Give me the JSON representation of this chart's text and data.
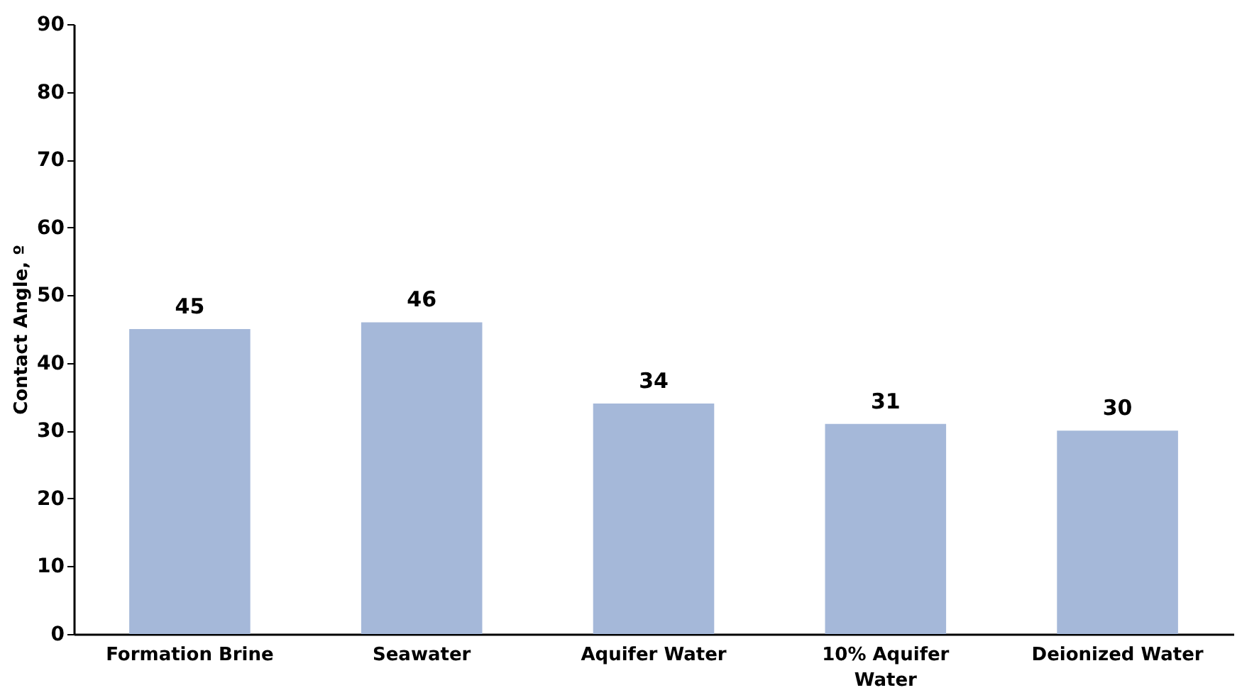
{
  "chart_data": {
    "type": "bar",
    "ylabel": "Contact Angle, º",
    "categories": [
      "Formation Brine",
      "Seawater",
      "Aquifer Water",
      "10% Aquifer Water",
      "Deionized Water"
    ],
    "values": [
      45,
      46,
      34,
      31,
      30
    ],
    "color": "#a5b8d9",
    "ylim": [
      0,
      90
    ],
    "yticks": [
      0,
      10,
      20,
      30,
      40,
      50,
      60,
      70,
      80,
      90
    ],
    "data_labels": true,
    "grid": false
  }
}
